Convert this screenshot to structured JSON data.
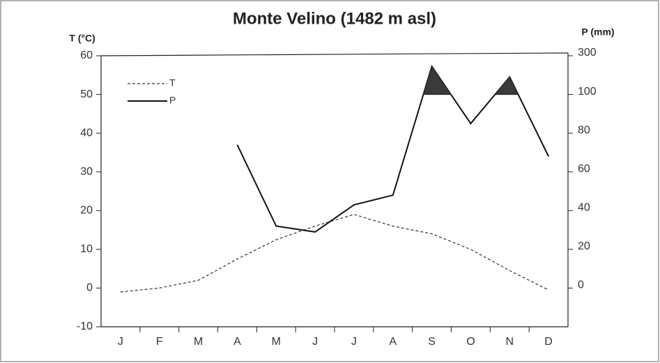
{
  "chart_data": {
    "type": "climate",
    "title": "Monte Velino (1482 m asl)",
    "y_label": "T (°C)",
    "y2_label": "P (mm)",
    "categories": [
      "J",
      "F",
      "M",
      "A",
      "M",
      "J",
      "J",
      "A",
      "S",
      "O",
      "N",
      "D"
    ],
    "series": [
      {
        "name": "T",
        "color": "#333333",
        "dash": true,
        "values": [
          -1,
          0,
          2,
          7.5,
          12.5,
          16,
          19,
          16,
          14,
          10,
          4.5,
          -0.5
        ]
      },
      {
        "name": "P",
        "color": "#111111",
        "dash": false,
        "axis": "y2",
        "values": [
          null,
          null,
          null,
          74,
          32,
          29,
          43,
          48,
          245,
          85,
          190,
          68
        ]
      }
    ],
    "ylim": [
      -10,
      60
    ],
    "yticks": [
      -10,
      0,
      10,
      20,
      30,
      40,
      50,
      60
    ],
    "y2lim": [
      -20,
      300
    ],
    "y2ticks": [
      0,
      20,
      40,
      60,
      80,
      100,
      300
    ],
    "y2_scale": "piecewise",
    "surplus_fill": "#3a3a3a",
    "legend": "upper left",
    "grid": false
  }
}
